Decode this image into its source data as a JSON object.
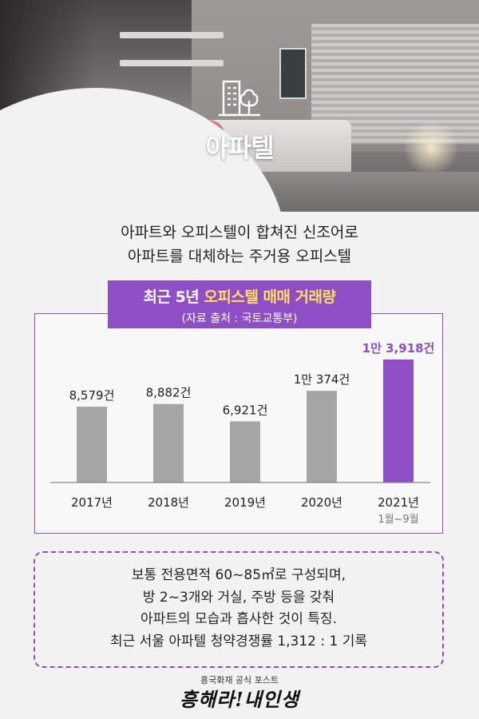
{
  "hero": {
    "title": "아파텔",
    "icon": "building-tree-icon"
  },
  "intro": {
    "line1": "아파트와 오피스텔이 합쳐진 신조어로",
    "line2": "아파트를 대체하는 주거용 오피스텔"
  },
  "chart_header": {
    "title_prefix": "최근 5년 ",
    "title_highlight": "오피스텔 매매 거래량",
    "source": "(자료 출처 : 국토교통부)"
  },
  "chart_data": {
    "type": "bar",
    "categories": [
      "2017년",
      "2018년",
      "2019년",
      "2020년",
      "2021년"
    ],
    "category_sublabels": [
      "",
      "",
      "",
      "",
      "1월~9월"
    ],
    "values": [
      8579,
      8882,
      6921,
      10374,
      13918
    ],
    "value_labels": [
      "8,579건",
      "8,882건",
      "6,921건",
      "1만 374건",
      "1만 3,918건"
    ],
    "ylim": [
      0,
      15000
    ],
    "colors": [
      "#a5a5a5",
      "#a5a5a5",
      "#a5a5a5",
      "#a5a5a5",
      "#8e4ec6"
    ],
    "highlight_index": 4,
    "grid": false
  },
  "note": {
    "line1": "보통 전용면적 60~85㎡로 구성되며,",
    "line2": "방 2~3개와 거실, 주방 등을 갖춰",
    "line3": "아파트의 모습과 흡사한 것이 특징.",
    "line4": "최근 서울 아파텔 청약경쟁률 1,312 : 1 기록"
  },
  "footer": {
    "subtitle": "흥국화재 공식 포스트",
    "brand": "흥해라!내인생"
  }
}
